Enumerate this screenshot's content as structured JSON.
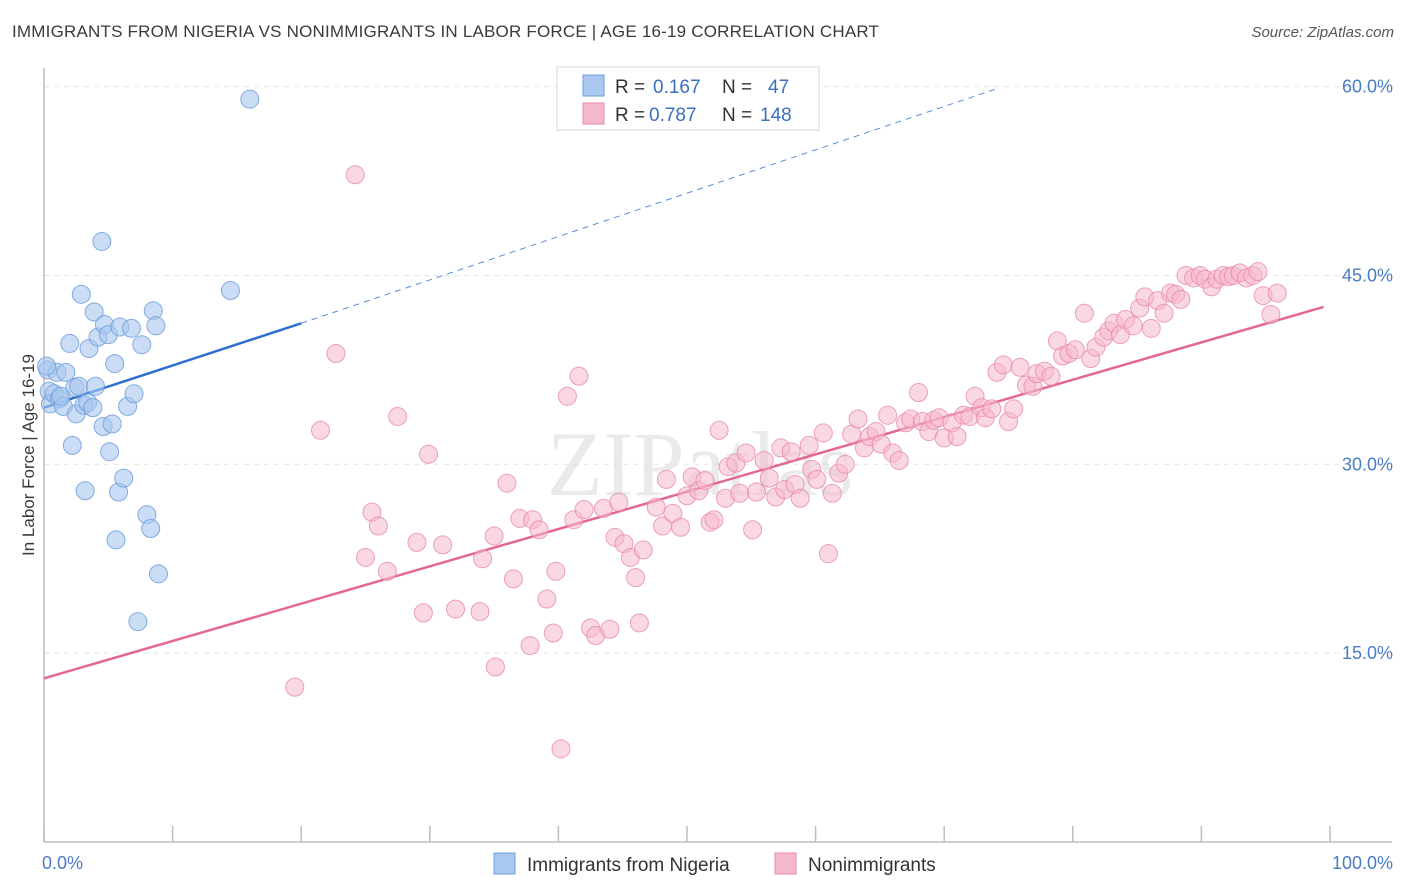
{
  "title": "IMMIGRANTS FROM NIGERIA VS NONIMMIGRANTS IN LABOR FORCE | AGE 16-19 CORRELATION CHART",
  "source": "Source: ZipAtlas.com",
  "watermark": "ZIPatlas",
  "colors": {
    "blue_fill": "#a9c7ef",
    "blue_stroke": "#6f9fdc",
    "blue_line": "#2f6fd0",
    "pink_fill": "#f5b8cb",
    "pink_stroke": "#e98aa8",
    "pink_line": "#e2688f",
    "tick_text": "#4a7cc4",
    "grid": "#e3e3e3"
  },
  "chart_data": {
    "type": "scatter",
    "title": "IMMIGRANTS FROM NIGERIA VS NONIMMIGRANTS IN LABOR FORCE | AGE 16-19 CORRELATION CHART",
    "xlabel": "",
    "ylabel": "In Labor Force | Age 16-19",
    "xlim": [
      0,
      100
    ],
    "ylim": [
      0,
      61
    ],
    "x_tick_labels": [
      {
        "value": 0,
        "label": "0.0%"
      },
      {
        "value": 100,
        "label": "100.0%"
      }
    ],
    "y_ticks": [
      {
        "value": 15,
        "label": "15.0%"
      },
      {
        "value": 30,
        "label": "30.0%"
      },
      {
        "value": 45,
        "label": "45.0%"
      },
      {
        "value": 60,
        "label": "60.0%"
      }
    ],
    "legend": {
      "position": "top-center",
      "rows": [
        {
          "r_label": "R =",
          "r_value": "0.167",
          "n_label": "N =",
          "n_value": "47"
        },
        {
          "r_label": "R =",
          "r_value": "0.787",
          "n_label": "N =",
          "n_value": "148"
        }
      ]
    },
    "series": [
      {
        "name": "Immigrants from Nigeria",
        "color": "blue",
        "trend": {
          "x0": 0,
          "y0": 34.5,
          "x1": 20,
          "y1": 41.2,
          "dash_to_x": 74,
          "dash_to_y": 59.8
        },
        "points": [
          [
            0.3,
            37.5
          ],
          [
            0.4,
            35.8
          ],
          [
            0.5,
            34.8
          ],
          [
            0.8,
            35.6
          ],
          [
            1.0,
            37.3
          ],
          [
            1.2,
            35.2
          ],
          [
            1.5,
            34.6
          ],
          [
            1.7,
            37.3
          ],
          [
            2.0,
            39.6
          ],
          [
            2.2,
            31.5
          ],
          [
            2.4,
            36.1
          ],
          [
            2.5,
            34.0
          ],
          [
            2.7,
            36.2
          ],
          [
            2.9,
            43.5
          ],
          [
            3.1,
            34.7
          ],
          [
            3.4,
            34.9
          ],
          [
            3.5,
            39.2
          ],
          [
            3.2,
            27.9
          ],
          [
            3.8,
            34.5
          ],
          [
            3.9,
            42.1
          ],
          [
            4.0,
            36.2
          ],
          [
            4.2,
            40.1
          ],
          [
            4.5,
            47.7
          ],
          [
            4.6,
            33.0
          ],
          [
            4.7,
            41.1
          ],
          [
            5.0,
            40.3
          ],
          [
            5.1,
            31.0
          ],
          [
            5.3,
            33.2
          ],
          [
            5.5,
            38.0
          ],
          [
            5.6,
            24.0
          ],
          [
            5.8,
            27.8
          ],
          [
            5.9,
            40.9
          ],
          [
            6.2,
            28.9
          ],
          [
            6.5,
            34.6
          ],
          [
            6.8,
            40.8
          ],
          [
            7.0,
            35.6
          ],
          [
            7.3,
            17.5
          ],
          [
            7.6,
            39.5
          ],
          [
            8.0,
            26.0
          ],
          [
            8.3,
            24.9
          ],
          [
            8.5,
            42.2
          ],
          [
            8.7,
            41.0
          ],
          [
            8.9,
            21.3
          ],
          [
            14.5,
            43.8
          ],
          [
            16.0,
            59.0
          ],
          [
            0.2,
            37.8
          ],
          [
            1.3,
            35.4
          ]
        ]
      },
      {
        "name": "Nonimmigrants",
        "color": "pink",
        "trend": {
          "x0": 0,
          "y0": 13.0,
          "x1": 99.5,
          "y1": 42.5
        },
        "points": [
          [
            19.5,
            12.3
          ],
          [
            21.5,
            32.7
          ],
          [
            22.7,
            38.8
          ],
          [
            24.2,
            53.0
          ],
          [
            25.0,
            22.6
          ],
          [
            25.5,
            26.2
          ],
          [
            26.0,
            25.1
          ],
          [
            26.7,
            21.5
          ],
          [
            27.5,
            33.8
          ],
          [
            29.0,
            23.8
          ],
          [
            29.5,
            18.2
          ],
          [
            29.9,
            30.8
          ],
          [
            31.0,
            23.6
          ],
          [
            32.0,
            18.5
          ],
          [
            33.9,
            18.3
          ],
          [
            34.1,
            22.5
          ],
          [
            35.1,
            13.9
          ],
          [
            35.0,
            24.3
          ],
          [
            36.0,
            28.5
          ],
          [
            36.5,
            20.9
          ],
          [
            37.0,
            25.7
          ],
          [
            38.0,
            25.6
          ],
          [
            37.8,
            15.6
          ],
          [
            38.5,
            24.8
          ],
          [
            39.1,
            19.3
          ],
          [
            39.6,
            16.6
          ],
          [
            39.8,
            21.5
          ],
          [
            40.2,
            7.4
          ],
          [
            40.7,
            35.4
          ],
          [
            41.2,
            25.6
          ],
          [
            41.6,
            37.0
          ],
          [
            42.0,
            26.4
          ],
          [
            42.5,
            17.0
          ],
          [
            42.9,
            16.4
          ],
          [
            43.5,
            26.5
          ],
          [
            44.0,
            16.9
          ],
          [
            44.4,
            24.2
          ],
          [
            44.7,
            27.0
          ],
          [
            45.1,
            23.7
          ],
          [
            45.6,
            22.6
          ],
          [
            46.0,
            21.0
          ],
          [
            46.3,
            17.4
          ],
          [
            46.6,
            23.2
          ],
          [
            47.6,
            26.6
          ],
          [
            48.1,
            25.1
          ],
          [
            48.4,
            28.8
          ],
          [
            48.9,
            26.1
          ],
          [
            49.5,
            25.0
          ],
          [
            50.0,
            27.5
          ],
          [
            50.4,
            29.0
          ],
          [
            50.9,
            27.9
          ],
          [
            51.4,
            28.7
          ],
          [
            51.8,
            25.4
          ],
          [
            52.1,
            25.6
          ],
          [
            52.5,
            32.7
          ],
          [
            53.0,
            27.3
          ],
          [
            53.2,
            29.8
          ],
          [
            53.8,
            30.1
          ],
          [
            54.1,
            27.7
          ],
          [
            54.6,
            30.9
          ],
          [
            55.1,
            24.8
          ],
          [
            55.4,
            27.8
          ],
          [
            56.0,
            30.3
          ],
          [
            56.4,
            28.9
          ],
          [
            56.9,
            27.4
          ],
          [
            57.3,
            31.3
          ],
          [
            57.6,
            28.0
          ],
          [
            58.1,
            31.0
          ],
          [
            58.4,
            28.4
          ],
          [
            58.8,
            27.3
          ],
          [
            59.5,
            31.5
          ],
          [
            59.7,
            29.6
          ],
          [
            60.1,
            28.8
          ],
          [
            60.6,
            32.5
          ],
          [
            61.0,
            22.9
          ],
          [
            61.3,
            27.7
          ],
          [
            61.8,
            29.3
          ],
          [
            62.3,
            30.0
          ],
          [
            62.8,
            32.4
          ],
          [
            63.3,
            33.6
          ],
          [
            63.8,
            31.3
          ],
          [
            64.2,
            32.2
          ],
          [
            64.7,
            32.6
          ],
          [
            65.1,
            31.6
          ],
          [
            65.6,
            33.9
          ],
          [
            66.0,
            30.9
          ],
          [
            66.5,
            30.3
          ],
          [
            67.0,
            33.3
          ],
          [
            67.4,
            33.6
          ],
          [
            68.0,
            35.7
          ],
          [
            68.3,
            33.4
          ],
          [
            68.8,
            32.6
          ],
          [
            69.2,
            33.5
          ],
          [
            69.6,
            33.7
          ],
          [
            70.0,
            32.1
          ],
          [
            70.6,
            33.3
          ],
          [
            71.0,
            32.2
          ],
          [
            71.5,
            33.9
          ],
          [
            72.0,
            33.8
          ],
          [
            72.4,
            35.4
          ],
          [
            72.9,
            34.5
          ],
          [
            73.2,
            33.7
          ],
          [
            73.7,
            34.4
          ],
          [
            74.1,
            37.3
          ],
          [
            74.6,
            37.9
          ],
          [
            75.0,
            33.4
          ],
          [
            75.4,
            34.4
          ],
          [
            75.9,
            37.7
          ],
          [
            76.4,
            36.3
          ],
          [
            76.9,
            36.2
          ],
          [
            77.2,
            37.2
          ],
          [
            77.8,
            37.4
          ],
          [
            78.3,
            37.0
          ],
          [
            78.8,
            39.8
          ],
          [
            79.2,
            38.6
          ],
          [
            79.7,
            38.8
          ],
          [
            80.2,
            39.1
          ],
          [
            80.9,
            42.0
          ],
          [
            81.4,
            38.4
          ],
          [
            81.8,
            39.3
          ],
          [
            82.4,
            40.1
          ],
          [
            82.8,
            40.6
          ],
          [
            83.2,
            41.2
          ],
          [
            83.7,
            40.3
          ],
          [
            84.1,
            41.5
          ],
          [
            84.7,
            41.0
          ],
          [
            85.2,
            42.4
          ],
          [
            85.6,
            43.3
          ],
          [
            86.1,
            40.8
          ],
          [
            86.6,
            43.0
          ],
          [
            87.1,
            42.0
          ],
          [
            87.6,
            43.6
          ],
          [
            88.0,
            43.5
          ],
          [
            88.4,
            43.1
          ],
          [
            88.8,
            45.0
          ],
          [
            89.4,
            44.8
          ],
          [
            89.9,
            45.0
          ],
          [
            90.3,
            44.7
          ],
          [
            90.8,
            44.1
          ],
          [
            91.2,
            44.7
          ],
          [
            91.7,
            45.0
          ],
          [
            92.1,
            44.9
          ],
          [
            92.5,
            45.0
          ],
          [
            93.0,
            45.2
          ],
          [
            93.5,
            44.8
          ],
          [
            94.0,
            45.0
          ],
          [
            94.4,
            45.3
          ],
          [
            94.8,
            43.4
          ],
          [
            95.4,
            41.9
          ],
          [
            95.9,
            43.6
          ]
        ]
      }
    ]
  }
}
